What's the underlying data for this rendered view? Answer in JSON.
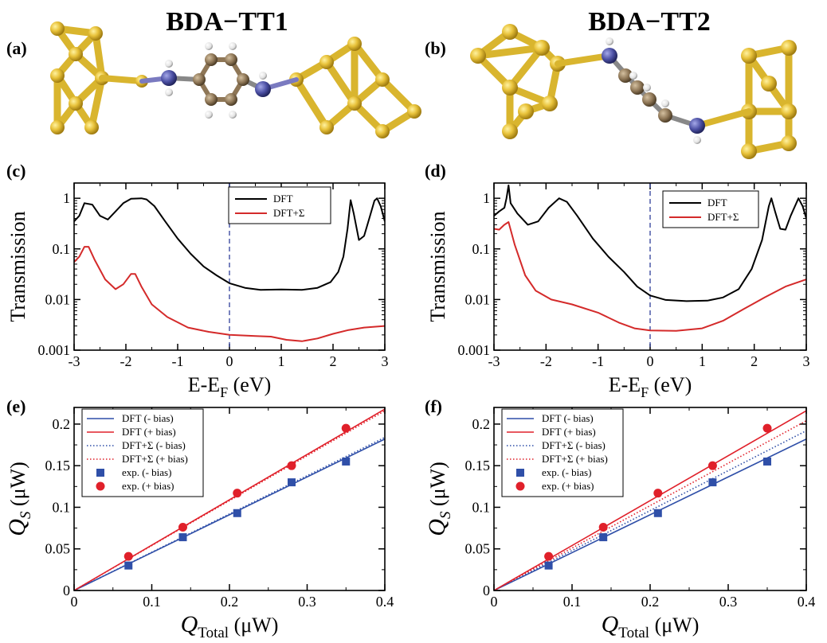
{
  "titles": {
    "left": "BDA−TT1",
    "right": "BDA−TT2"
  },
  "panel_labels": {
    "a": "(a)",
    "b": "(b)",
    "c": "(c)",
    "d": "(d)",
    "e": "(e)",
    "f": "(f)"
  },
  "colors": {
    "gold": "#d9b52e",
    "gold_dark": "#b8941c",
    "nitrogen": "#4b4fa3",
    "carbon": "#8e7656",
    "hydrogen": "#ededed",
    "dft": "#000000",
    "dft_sigma": "#d42a2a",
    "minus_bias": "#2f4fa8",
    "plus_bias": "#e0202a"
  },
  "chart_data": [
    {
      "id": "c",
      "type": "line",
      "panel": "(c)",
      "xlabel": "E-E",
      "xlabel_sub": "F",
      "xlabel_unit": " (eV)",
      "ylabel": "Transmission",
      "yscale": "log",
      "xlim": [
        -3,
        3
      ],
      "ylim": [
        0.001,
        2
      ],
      "x_ticks": [
        "-3",
        "-2",
        "-1",
        "0",
        "1",
        "2",
        "3"
      ],
      "y_ticks": [
        "1",
        "0.1",
        "0.01",
        "0.001"
      ],
      "vline": 0,
      "legend_position": "top-right",
      "series": [
        {
          "name": "DFT",
          "color": "#000000",
          "points": [
            [
              -3,
              0.35
            ],
            [
              -2.9,
              0.45
            ],
            [
              -2.8,
              0.8
            ],
            [
              -2.65,
              0.75
            ],
            [
              -2.5,
              0.45
            ],
            [
              -2.35,
              0.38
            ],
            [
              -2.2,
              0.55
            ],
            [
              -2.05,
              0.8
            ],
            [
              -1.9,
              0.98
            ],
            [
              -1.7,
              1.0
            ],
            [
              -1.6,
              0.95
            ],
            [
              -1.45,
              0.7
            ],
            [
              -1.25,
              0.36
            ],
            [
              -1.0,
              0.16
            ],
            [
              -0.75,
              0.08
            ],
            [
              -0.5,
              0.045
            ],
            [
              -0.25,
              0.03
            ],
            [
              0,
              0.021
            ],
            [
              0.3,
              0.017
            ],
            [
              0.6,
              0.0155
            ],
            [
              1.0,
              0.0158
            ],
            [
              1.4,
              0.0155
            ],
            [
              1.7,
              0.017
            ],
            [
              1.95,
              0.022
            ],
            [
              2.1,
              0.035
            ],
            [
              2.2,
              0.07
            ],
            [
              2.28,
              0.25
            ],
            [
              2.34,
              0.92
            ],
            [
              2.4,
              0.5
            ],
            [
              2.5,
              0.15
            ],
            [
              2.6,
              0.18
            ],
            [
              2.7,
              0.4
            ],
            [
              2.8,
              0.9
            ],
            [
              2.85,
              1.0
            ],
            [
              2.92,
              0.7
            ],
            [
              3.0,
              0.35
            ]
          ]
        },
        {
          "name": "DFT+Σ",
          "color": "#d42a2a",
          "points": [
            [
              -3,
              0.055
            ],
            [
              -2.9,
              0.07
            ],
            [
              -2.8,
              0.11
            ],
            [
              -2.72,
              0.11
            ],
            [
              -2.6,
              0.06
            ],
            [
              -2.4,
              0.025
            ],
            [
              -2.2,
              0.016
            ],
            [
              -2.05,
              0.02
            ],
            [
              -1.9,
              0.032
            ],
            [
              -1.82,
              0.032
            ],
            [
              -1.7,
              0.018
            ],
            [
              -1.5,
              0.008
            ],
            [
              -1.2,
              0.0045
            ],
            [
              -0.8,
              0.0028
            ],
            [
              -0.4,
              0.0023
            ],
            [
              0,
              0.002
            ],
            [
              0.5,
              0.0019
            ],
            [
              0.8,
              0.00185
            ],
            [
              1.1,
              0.0016
            ],
            [
              1.4,
              0.0015
            ],
            [
              1.7,
              0.0017
            ],
            [
              2.0,
              0.0021
            ],
            [
              2.3,
              0.0025
            ],
            [
              2.6,
              0.0028
            ],
            [
              3.0,
              0.003
            ]
          ]
        }
      ]
    },
    {
      "id": "d",
      "type": "line",
      "panel": "(d)",
      "xlabel": "E-E",
      "xlabel_sub": "F",
      "xlabel_unit": " (eV)",
      "ylabel": "Transmission",
      "yscale": "log",
      "xlim": [
        -3,
        3
      ],
      "ylim": [
        0.001,
        2
      ],
      "x_ticks": [
        "-3",
        "-2",
        "-1",
        "0",
        "1",
        "2",
        "3"
      ],
      "y_ticks": [
        "1",
        "0.1",
        "0.01",
        "0.001"
      ],
      "vline": 0,
      "legend_position": "top-right",
      "series": [
        {
          "name": "DFT",
          "color": "#000000",
          "points": [
            [
              -3,
              0.45
            ],
            [
              -2.9,
              0.55
            ],
            [
              -2.8,
              0.65
            ],
            [
              -2.76,
              1.0
            ],
            [
              -2.72,
              1.8
            ],
            [
              -2.68,
              0.8
            ],
            [
              -2.55,
              0.5
            ],
            [
              -2.35,
              0.3
            ],
            [
              -2.15,
              0.35
            ],
            [
              -1.95,
              0.65
            ],
            [
              -1.75,
              1.0
            ],
            [
              -1.6,
              0.85
            ],
            [
              -1.4,
              0.45
            ],
            [
              -1.1,
              0.16
            ],
            [
              -0.8,
              0.07
            ],
            [
              -0.5,
              0.035
            ],
            [
              -0.25,
              0.018
            ],
            [
              0,
              0.012
            ],
            [
              0.3,
              0.0098
            ],
            [
              0.7,
              0.0093
            ],
            [
              1.1,
              0.0095
            ],
            [
              1.4,
              0.011
            ],
            [
              1.7,
              0.016
            ],
            [
              1.95,
              0.04
            ],
            [
              2.15,
              0.15
            ],
            [
              2.28,
              0.7
            ],
            [
              2.33,
              1.0
            ],
            [
              2.4,
              0.55
            ],
            [
              2.5,
              0.25
            ],
            [
              2.6,
              0.24
            ],
            [
              2.7,
              0.45
            ],
            [
              2.85,
              1.0
            ],
            [
              2.93,
              0.7
            ],
            [
              3.0,
              0.4
            ]
          ]
        },
        {
          "name": "DFT+Σ",
          "color": "#d42a2a",
          "points": [
            [
              -3,
              0.25
            ],
            [
              -2.9,
              0.24
            ],
            [
              -2.8,
              0.3
            ],
            [
              -2.72,
              0.34
            ],
            [
              -2.6,
              0.12
            ],
            [
              -2.4,
              0.03
            ],
            [
              -2.2,
              0.015
            ],
            [
              -1.9,
              0.01
            ],
            [
              -1.5,
              0.008
            ],
            [
              -1.0,
              0.0055
            ],
            [
              -0.6,
              0.0035
            ],
            [
              -0.3,
              0.0027
            ],
            [
              0,
              0.00245
            ],
            [
              0.5,
              0.0024
            ],
            [
              1.0,
              0.0027
            ],
            [
              1.4,
              0.0038
            ],
            [
              1.8,
              0.0065
            ],
            [
              2.2,
              0.011
            ],
            [
              2.6,
              0.018
            ],
            [
              3.0,
              0.025
            ]
          ]
        }
      ]
    },
    {
      "id": "e",
      "type": "scatter",
      "panel": "(e)",
      "xlabel": "Q",
      "xlabel_sub": "Total",
      "xlabel_unit": " (μW)",
      "ylabel": "Q",
      "ylabel_sub": "S",
      "ylabel_unit": " (μW)",
      "xlim": [
        0,
        0.4
      ],
      "ylim": [
        0,
        0.22
      ],
      "x_ticks": [
        "0",
        "0.1",
        "0.2",
        "0.3",
        "0.4"
      ],
      "y_ticks": [
        "0",
        "0.05",
        "0.1",
        "0.15",
        "0.2"
      ],
      "legend_position": "top-left",
      "lines": [
        {
          "name": "DFT (- bias)",
          "color": "#2f4fa8",
          "style": "solid",
          "slope": 0.455
        },
        {
          "name": "DFT (+ bias)",
          "color": "#e0202a",
          "style": "solid",
          "slope": 0.545
        },
        {
          "name": "DFT+Σ (- bias)",
          "color": "#2f4fa8",
          "style": "dotted",
          "slope": 0.46
        },
        {
          "name": "DFT+Σ (+ bias)",
          "color": "#e0202a",
          "style": "dotted",
          "slope": 0.54
        }
      ],
      "points": [
        {
          "name": "exp. (- bias)",
          "color": "#2f4fa8",
          "marker": "square",
          "x": [
            0.07,
            0.14,
            0.21,
            0.28,
            0.35
          ],
          "y": [
            0.03,
            0.064,
            0.093,
            0.13,
            0.155
          ]
        },
        {
          "name": "exp. (+ bias)",
          "color": "#e0202a",
          "marker": "circle",
          "x": [
            0.07,
            0.14,
            0.21,
            0.28,
            0.35
          ],
          "y": [
            0.041,
            0.076,
            0.117,
            0.15,
            0.195
          ]
        }
      ]
    },
    {
      "id": "f",
      "type": "scatter",
      "panel": "(f)",
      "xlabel": "Q",
      "xlabel_sub": "Total",
      "xlabel_unit": " (μW)",
      "ylabel": "Q",
      "ylabel_sub": "S",
      "ylabel_unit": " (μW)",
      "xlim": [
        0,
        0.4
      ],
      "ylim": [
        0,
        0.22
      ],
      "x_ticks": [
        "0",
        "0.1",
        "0.2",
        "0.3",
        "0.4"
      ],
      "y_ticks": [
        "0",
        "0.05",
        "0.1",
        "0.15",
        "0.2"
      ],
      "legend_position": "top-left",
      "lines": [
        {
          "name": "DFT (- bias)",
          "color": "#2f4fa8",
          "style": "solid",
          "slope": 0.455
        },
        {
          "name": "DFT (+ bias)",
          "color": "#e0202a",
          "style": "solid",
          "slope": 0.54
        },
        {
          "name": "DFT+Σ (- bias)",
          "color": "#2f4fa8",
          "style": "dotted",
          "slope": 0.48
        },
        {
          "name": "DFT+Σ (+ bias)",
          "color": "#e0202a",
          "style": "dotted",
          "slope": 0.51
        }
      ],
      "points": [
        {
          "name": "exp. (- bias)",
          "color": "#2f4fa8",
          "marker": "square",
          "x": [
            0.07,
            0.14,
            0.21,
            0.28,
            0.35
          ],
          "y": [
            0.03,
            0.064,
            0.093,
            0.13,
            0.155
          ]
        },
        {
          "name": "exp. (+ bias)",
          "color": "#e0202a",
          "marker": "circle",
          "x": [
            0.07,
            0.14,
            0.21,
            0.28,
            0.35
          ],
          "y": [
            0.041,
            0.076,
            0.117,
            0.15,
            0.195
          ]
        }
      ]
    }
  ]
}
